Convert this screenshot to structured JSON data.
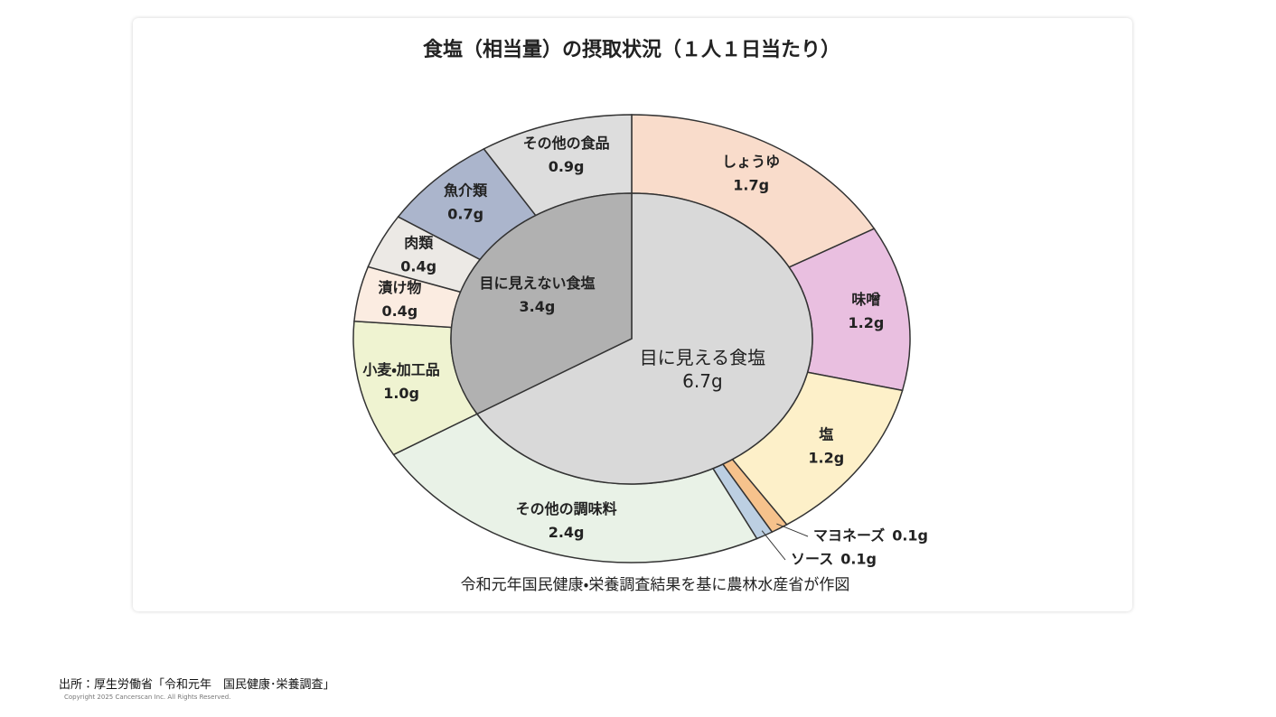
{
  "chart_data": {
    "type": "nested-pie",
    "title": "食塩（相当量）の摂取状況（１人１日当たり）",
    "source_note": "令和元年国民健康・栄養調査結果を基に農林水産省が作図",
    "inner": {
      "categories": [
        "目に見える食塩",
        "目に見えない食塩"
      ],
      "values": [
        6.7,
        3.4
      ],
      "value_labels": [
        "6.7g",
        "3.4g"
      ],
      "colors": [
        "#d9d9d9",
        "#b1b1b1"
      ]
    },
    "outer": {
      "categories": [
        "しょうゆ",
        "味噌",
        "塩",
        "マヨネーズ",
        "ソース",
        "その他の調味料",
        "小麦・加工品",
        "漬け物",
        "肉類",
        "魚介類",
        "その他の食品"
      ],
      "values": [
        1.7,
        1.2,
        1.2,
        0.1,
        0.1,
        2.4,
        1.0,
        0.4,
        0.4,
        0.7,
        0.9
      ],
      "value_labels": [
        "1.7g",
        "1.2g",
        "1.2g",
        "0.1g",
        "0.1g",
        "2.4g",
        "1.0g",
        "0.4g",
        "0.4g",
        "0.7g",
        "0.9g"
      ],
      "colors": [
        "#f9dccb",
        "#e9bfe0",
        "#fdf0c9",
        "#f6c28c",
        "#bccfe2",
        "#e9f2e7",
        "#eff3d1",
        "#fbece1",
        "#ece9e5",
        "#abb5cc",
        "#dddddd"
      ]
    }
  },
  "footer": {
    "source": "出所：厚生労働省「令和元年　国民健康･栄養調査」",
    "copyright": "Copyright 2025 Cancerscan Inc. All Rights Reserved."
  }
}
